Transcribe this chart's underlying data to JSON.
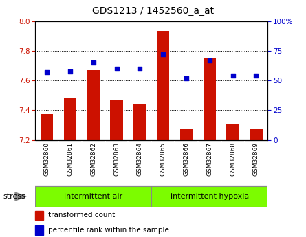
{
  "title": "GDS1213 / 1452560_a_at",
  "samples": [
    "GSM32860",
    "GSM32861",
    "GSM32862",
    "GSM32863",
    "GSM32864",
    "GSM32865",
    "GSM32866",
    "GSM32867",
    "GSM32868",
    "GSM32869"
  ],
  "transformed_count": [
    7.375,
    7.48,
    7.67,
    7.47,
    7.44,
    7.935,
    7.27,
    7.755,
    7.305,
    7.27
  ],
  "percentile_rank": [
    57,
    58,
    65,
    60,
    60,
    72,
    52,
    67,
    54,
    54
  ],
  "ylim_left": [
    7.2,
    8.0
  ],
  "ylim_right": [
    0,
    100
  ],
  "yticks_left": [
    7.2,
    7.4,
    7.6,
    7.8,
    8.0
  ],
  "yticks_right": [
    0,
    25,
    50,
    75,
    100
  ],
  "bar_color": "#CC1100",
  "dot_color": "#0000CC",
  "bar_bottom": 7.2,
  "group1_label": "intermittent air",
  "group2_label": "intermittent hypoxia",
  "group1_count": 5,
  "group2_count": 5,
  "group_bg_color": "#7CFC00",
  "stress_label": "stress",
  "tick_label_color_left": "#CC1100",
  "tick_label_color_right": "#0000CC",
  "legend_bar_label": "transformed count",
  "legend_dot_label": "percentile rank within the sample",
  "xtick_bg_color": "#C8C8C8",
  "plot_bg_color": "#FFFFFF"
}
